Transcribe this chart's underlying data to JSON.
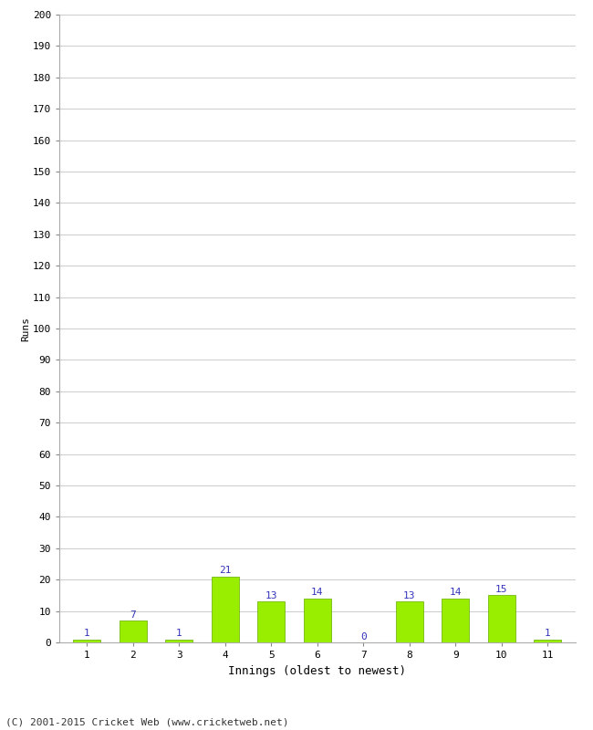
{
  "innings": [
    1,
    2,
    3,
    4,
    5,
    6,
    7,
    8,
    9,
    10,
    11
  ],
  "runs": [
    1,
    7,
    1,
    21,
    13,
    14,
    0,
    13,
    14,
    15,
    1
  ],
  "bar_color": "#99ee00",
  "bar_edge_color": "#66aa00",
  "label_color": "#3333bb",
  "xlabel": "Innings (oldest to newest)",
  "ylabel": "Runs",
  "ylim": [
    0,
    200
  ],
  "yticks": [
    0,
    10,
    20,
    30,
    40,
    50,
    60,
    70,
    80,
    90,
    100,
    110,
    120,
    130,
    140,
    150,
    160,
    170,
    180,
    190,
    200
  ],
  "footer": "(C) 2001-2015 Cricket Web (www.cricketweb.net)",
  "background_color": "#ffffff",
  "grid_color": "#cccccc",
  "label_fontsize": 8,
  "axis_fontsize": 8,
  "ylabel_fontsize": 8,
  "xlabel_fontsize": 9,
  "footer_fontsize": 8
}
